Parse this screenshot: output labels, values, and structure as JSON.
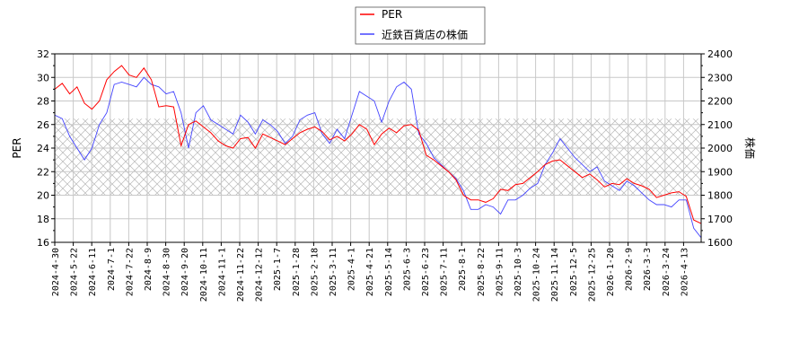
{
  "chart_data": {
    "type": "line",
    "title": "",
    "legend": {
      "position": "top-center",
      "entries": [
        {
          "label": "PER",
          "color": "#ff0000"
        },
        {
          "label": "近鉄百貨店の株価",
          "color": "#4444ff"
        }
      ]
    },
    "xlabel": "",
    "ylabel_left": "PER",
    "ylabel_right": "株価",
    "ylim_left": [
      16,
      32
    ],
    "ylim_right": [
      1600,
      2400
    ],
    "yticks_left": [
      16,
      18,
      20,
      22,
      24,
      26,
      28,
      30,
      32
    ],
    "yticks_right": [
      1600,
      1700,
      1800,
      1900,
      2000,
      2100,
      2200,
      2300,
      2400
    ],
    "grid": true,
    "shaded_band_left": {
      "from": 20,
      "to": 26.5,
      "pattern": "crosshatch"
    },
    "x_tick_labels": [
      "2024-4-30",
      "2024-5-22",
      "2024-6-11",
      "2024-7-1",
      "2024-7-22",
      "2024-8-9",
      "2024-8-30",
      "2024-9-20",
      "2024-10-11",
      "2024-11-1",
      "2024-11-22",
      "2024-12-12",
      "2025-1-7",
      "2025-1-28",
      "2025-2-18",
      "2025-3-11",
      "2025-4-1",
      "2025-4-21",
      "2025-5-14",
      "2025-6-3",
      "2025-6-23",
      "2025-7-11",
      "2025-8-1",
      "2025-8-22",
      "2025-9-11",
      "2025-10-3",
      "2025-10-24",
      "2025-11-14",
      "2025-12-5",
      "2025-12-25",
      "2026-1-20",
      "2026-2-9",
      "2026-3-3",
      "2026-3-24",
      "2026-4-13"
    ],
    "series": [
      {
        "name": "PER",
        "axis": "left",
        "color": "#ff0000",
        "values": [
          29.0,
          29.5,
          28.6,
          29.2,
          27.8,
          27.3,
          28.0,
          29.8,
          30.5,
          31.0,
          30.2,
          30.0,
          30.8,
          29.8,
          27.5,
          27.6,
          27.5,
          24.2,
          26.0,
          26.3,
          25.8,
          25.3,
          24.6,
          24.2,
          24.0,
          24.8,
          24.9,
          24.0,
          25.2,
          24.9,
          24.6,
          24.3,
          24.8,
          25.3,
          25.6,
          25.8,
          25.4,
          24.7,
          25.0,
          24.6,
          25.2,
          26.0,
          25.6,
          24.3,
          25.2,
          25.7,
          25.3,
          25.9,
          26.0,
          25.5,
          23.4,
          23.0,
          22.5,
          22.0,
          21.3,
          20.0,
          19.6,
          19.6,
          19.4,
          19.7,
          20.5,
          20.4,
          20.9,
          21.0,
          21.5,
          22.0,
          22.6,
          22.9,
          23.0,
          22.5,
          22.0,
          21.5,
          21.8,
          21.3,
          20.7,
          21.0,
          20.9,
          21.4,
          21.0,
          20.8,
          20.5,
          19.8,
          20.0,
          20.2,
          20.3,
          19.9,
          17.9,
          17.6
        ]
      },
      {
        "name": "近鉄百貨店の株価",
        "axis": "right",
        "color": "#4444ff",
        "values": [
          2140,
          2125,
          2050,
          2000,
          1950,
          2000,
          2100,
          2150,
          2270,
          2280,
          2270,
          2260,
          2300,
          2270,
          2260,
          2230,
          2240,
          2150,
          2000,
          2150,
          2180,
          2120,
          2100,
          2080,
          2060,
          2140,
          2110,
          2060,
          2120,
          2100,
          2070,
          2020,
          2050,
          2120,
          2140,
          2150,
          2060,
          2020,
          2080,
          2040,
          2140,
          2240,
          2220,
          2200,
          2110,
          2200,
          2260,
          2280,
          2250,
          2060,
          2020,
          1960,
          1930,
          1900,
          1870,
          1820,
          1740,
          1740,
          1760,
          1750,
          1720,
          1780,
          1780,
          1800,
          1830,
          1850,
          1930,
          1980,
          2040,
          2000,
          1960,
          1930,
          1900,
          1920,
          1860,
          1840,
          1820,
          1860,
          1840,
          1810,
          1780,
          1760,
          1760,
          1750,
          1780,
          1780,
          1660,
          1620
        ]
      }
    ]
  }
}
